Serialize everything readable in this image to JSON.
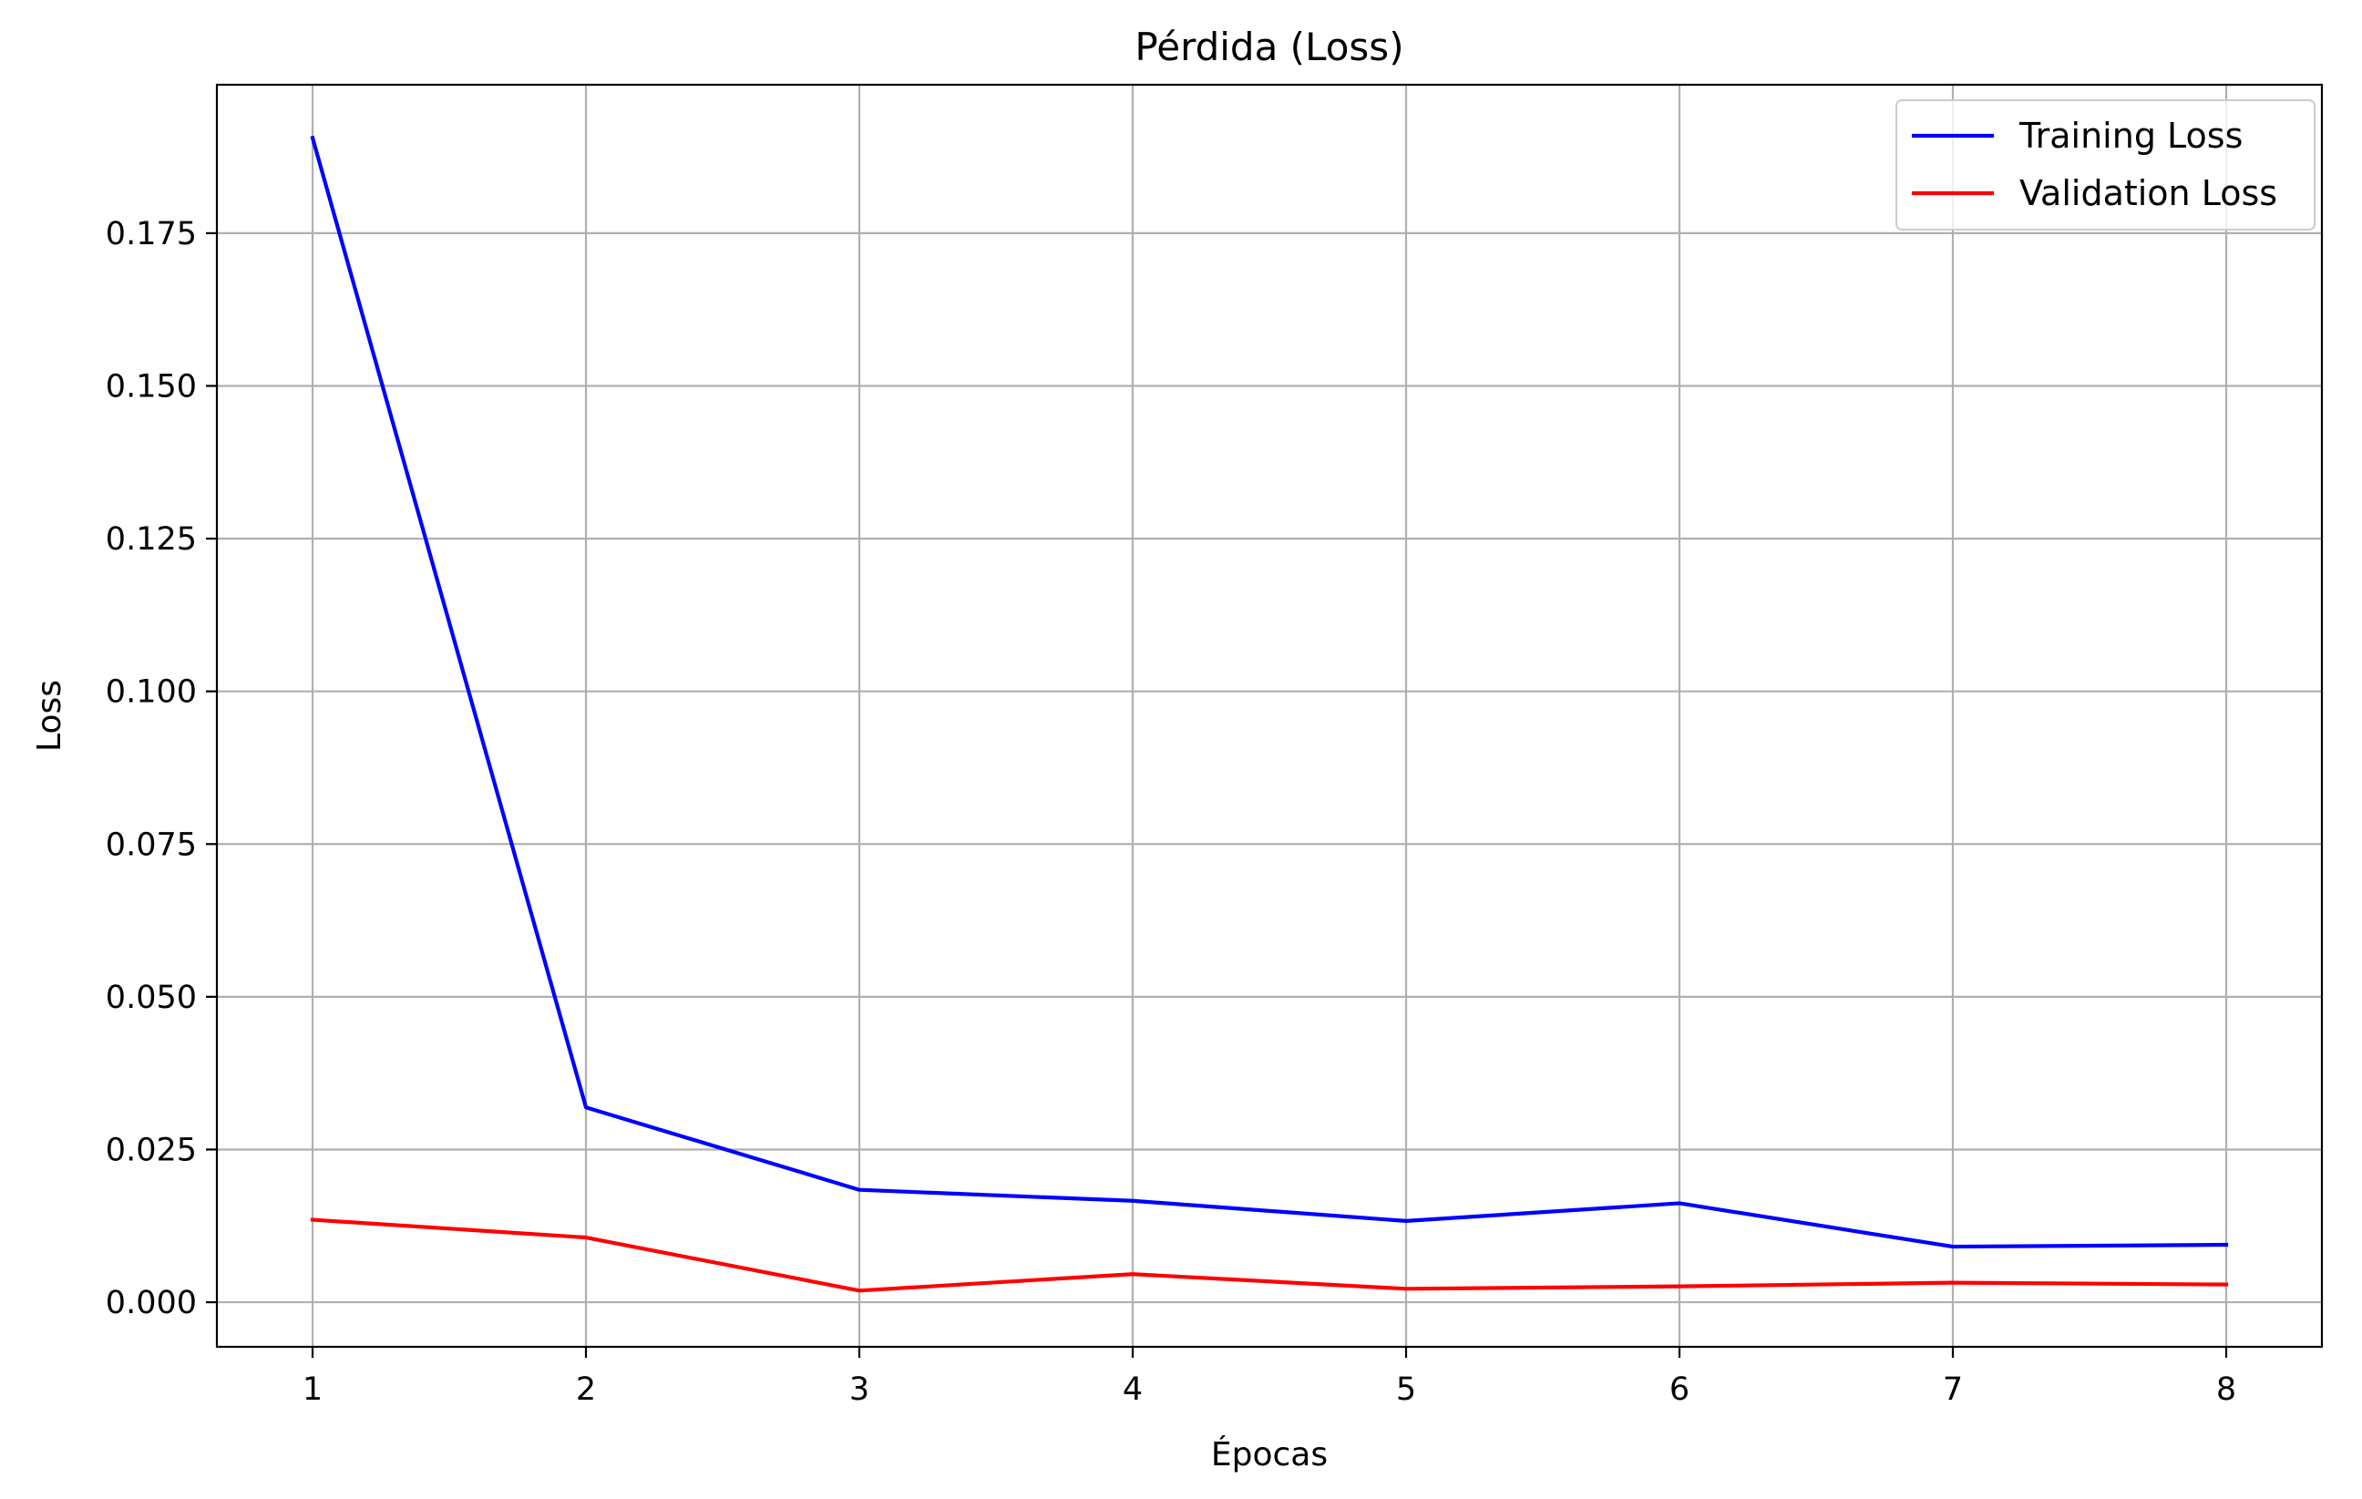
{
  "chart_data": {
    "type": "line",
    "title": "Pérdida (Loss)",
    "xlabel": "Épocas",
    "ylabel": "Loss",
    "x": [
      1,
      2,
      3,
      4,
      5,
      6,
      7,
      8
    ],
    "xlim": [
      0.65,
      8.35
    ],
    "ylim": [
      -0.0073,
      0.1993
    ],
    "xticks": [
      1,
      2,
      3,
      4,
      5,
      6,
      7,
      8
    ],
    "yticks": [
      0.0,
      0.025,
      0.05,
      0.075,
      0.1,
      0.125,
      0.15,
      0.175
    ],
    "ytick_labels": [
      "0.000",
      "0.025",
      "0.050",
      "0.075",
      "0.100",
      "0.125",
      "0.150",
      "0.175"
    ],
    "grid": true,
    "legend_position": "top-right",
    "series": [
      {
        "name": "Training Loss",
        "color": "#0000ff",
        "values": [
          0.1906,
          0.0319,
          0.0184,
          0.0166,
          0.0133,
          0.0162,
          0.0091,
          0.0094
        ]
      },
      {
        "name": "Validation Loss",
        "color": "#ff0000",
        "values": [
          0.0135,
          0.0106,
          0.0019,
          0.0046,
          0.0022,
          0.0026,
          0.0032,
          0.0029
        ]
      }
    ]
  }
}
